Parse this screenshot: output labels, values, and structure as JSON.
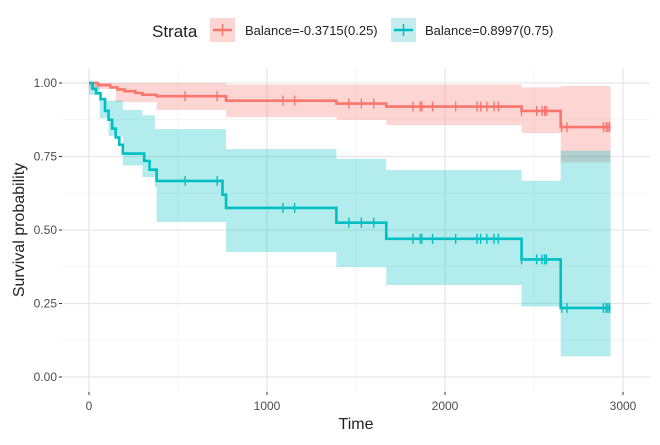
{
  "chart_data": {
    "type": "line",
    "subtype": "kaplan-meier survival curve with confidence bands and censor marks",
    "xlabel": "Time",
    "ylabel": "Survival probability",
    "xlim": [
      -50,
      3100
    ],
    "ylim": [
      0,
      1.02
    ],
    "x_ticks": [
      0,
      1000,
      2000,
      3000
    ],
    "x_tick_labels": [
      "0",
      "1000",
      "2000",
      "3000"
    ],
    "y_ticks": [
      0,
      0.25,
      0.5,
      0.75,
      1.0
    ],
    "y_tick_labels": [
      "0.00",
      "0.25",
      "0.50",
      "0.75",
      "1.00"
    ],
    "grid": true,
    "legend": {
      "title": "Strata",
      "position": "top"
    },
    "series": [
      {
        "name": "Balance=-0.3715(0.25)",
        "color": "#F8766D",
        "band_color": "#FDD5D2",
        "end_time": 2930,
        "steps": [
          [
            0,
            1.0
          ],
          [
            50,
            0.993
          ],
          [
            120,
            0.985
          ],
          [
            160,
            0.978
          ],
          [
            200,
            0.972
          ],
          [
            260,
            0.966
          ],
          [
            300,
            0.96
          ],
          [
            380,
            0.955
          ],
          [
            770,
            0.94
          ],
          [
            1390,
            0.93
          ],
          [
            1670,
            0.92
          ],
          [
            2430,
            0.905
          ],
          [
            2650,
            0.85
          ]
        ],
        "band": [
          [
            0,
            0.98,
            1.0
          ],
          [
            150,
            0.935,
            1.0
          ],
          [
            380,
            0.908,
            1.0
          ],
          [
            770,
            0.884,
            0.995
          ],
          [
            1390,
            0.874,
            0.995
          ],
          [
            1670,
            0.857,
            0.995
          ],
          [
            2430,
            0.83,
            0.985
          ],
          [
            2650,
            0.73,
            0.99
          ]
        ],
        "censored": [
          540,
          720,
          1090,
          1155,
          1460,
          1530,
          1600,
          1820,
          1860,
          1870,
          1930,
          2060,
          2180,
          2200,
          2235,
          2275,
          2300,
          2430,
          2515,
          2545,
          2560,
          2570,
          2655,
          2685,
          2890,
          2905,
          2915,
          2925
        ]
      },
      {
        "name": "Balance=0.8997(0.75)",
        "color": "#00BFC4",
        "band_color": "#C4EBED",
        "end_time": 2930,
        "steps": [
          [
            0,
            1.0
          ],
          [
            20,
            0.98
          ],
          [
            40,
            0.965
          ],
          [
            65,
            0.945
          ],
          [
            90,
            0.905
          ],
          [
            110,
            0.875
          ],
          [
            130,
            0.845
          ],
          [
            150,
            0.815
          ],
          [
            170,
            0.79
          ],
          [
            190,
            0.76
          ],
          [
            310,
            0.735
          ],
          [
            340,
            0.705
          ],
          [
            380,
            0.667
          ],
          [
            750,
            0.62
          ],
          [
            770,
            0.575
          ],
          [
            1390,
            0.525
          ],
          [
            1670,
            0.47
          ],
          [
            2430,
            0.4
          ],
          [
            2650,
            0.235
          ]
        ],
        "band": [
          [
            0,
            0.96,
            1.0
          ],
          [
            60,
            0.88,
            0.94
          ],
          [
            110,
            0.82,
            0.94
          ],
          [
            190,
            0.72,
            0.908
          ],
          [
            300,
            0.68,
            0.89
          ],
          [
            370,
            0.646,
            0.843
          ],
          [
            380,
            0.527,
            0.843
          ],
          [
            770,
            0.425,
            0.775
          ],
          [
            1390,
            0.374,
            0.742
          ],
          [
            1670,
            0.313,
            0.704
          ],
          [
            2430,
            0.24,
            0.667
          ],
          [
            2650,
            0.07,
            0.77
          ]
        ],
        "censored": [
          540,
          720,
          1090,
          1155,
          1460,
          1530,
          1600,
          1820,
          1860,
          1870,
          1930,
          2060,
          2180,
          2200,
          2235,
          2275,
          2300,
          2430,
          2515,
          2545,
          2560,
          2570,
          2655,
          2685,
          2890,
          2905,
          2915,
          2925
        ]
      }
    ]
  }
}
